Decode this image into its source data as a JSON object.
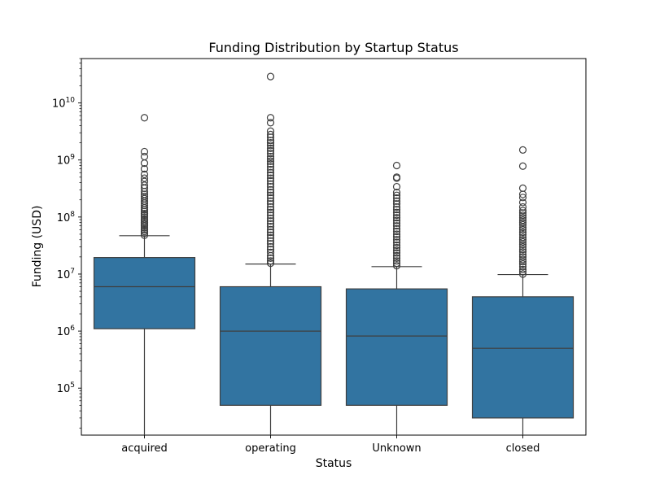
{
  "chart_data": {
    "type": "box",
    "title": "Funding Distribution by Startup Status",
    "xlabel": "Status",
    "ylabel": "Funding (USD)",
    "yscale": "log",
    "ylim": [
      15000,
      60000000000
    ],
    "ytick_base": "10",
    "ytick_exponents": [
      "5",
      "6",
      "7",
      "8",
      "9",
      "10"
    ],
    "box_color": "#3274a1",
    "line_color": "#3f3f3f",
    "categories": [
      "acquired",
      "operating",
      "Unknown",
      "closed"
    ],
    "boxes": [
      {
        "category": "acquired",
        "whisker_low": 15000,
        "q1": 1100000,
        "median": 6000000,
        "q3": 19500000,
        "whisker_high": 47000000,
        "outliers": [
          48000000,
          52000000,
          56000000,
          60000000,
          65000000,
          70000000,
          75000000,
          80000000,
          86000000,
          92000000,
          100000000,
          108000000,
          115000000,
          125000000,
          135000000,
          145000000,
          160000000,
          175000000,
          190000000,
          210000000,
          230000000,
          250000000,
          280000000,
          320000000,
          360000000,
          420000000,
          480000000,
          560000000,
          700000000,
          880000000,
          1150000000,
          1400000000,
          5500000000
        ]
      },
      {
        "category": "operating",
        "whisker_low": 15000,
        "q1": 50000,
        "median": 1000000,
        "q3": 6000000,
        "whisker_high": 15000000,
        "outliers": [
          15500000,
          17000000,
          19000000,
          21000000,
          24000000,
          27000000,
          30000000,
          34000000,
          38000000,
          43000000,
          48000000,
          54000000,
          60000000,
          68000000,
          76000000,
          85000000,
          95000000,
          107000000,
          120000000,
          135000000,
          150000000,
          170000000,
          190000000,
          215000000,
          240000000,
          270000000,
          300000000,
          340000000,
          380000000,
          430000000,
          480000000,
          540000000,
          600000000,
          680000000,
          760000000,
          850000000,
          950000000,
          1050000000,
          1150000000,
          1300000000,
          1450000000,
          1600000000,
          1800000000,
          2000000000,
          2200000000,
          2500000000,
          2800000000,
          3200000000,
          4500000000,
          5500000000,
          29000000000
        ]
      },
      {
        "category": "Unknown",
        "whisker_low": 15000,
        "q1": 50000,
        "median": 820000,
        "q3": 5500000,
        "whisker_high": 13500000,
        "outliers": [
          14000000,
          15500000,
          17000000,
          19000000,
          21000000,
          23500000,
          26000000,
          29000000,
          32000000,
          36000000,
          40000000,
          45000000,
          50000000,
          56000000,
          62000000,
          70000000,
          78000000,
          87000000,
          97000000,
          108000000,
          120000000,
          135000000,
          150000000,
          170000000,
          190000000,
          215000000,
          240000000,
          270000000,
          340000000,
          480000000,
          500000000,
          800000000
        ]
      },
      {
        "category": "closed",
        "whisker_low": 15000,
        "q1": 30000,
        "median": 500000,
        "q3": 4000000,
        "whisker_high": 9800000,
        "outliers": [
          10000000,
          11000000,
          12000000,
          13500000,
          15000000,
          16500000,
          18000000,
          20000000,
          22000000,
          24500000,
          27000000,
          30000000,
          33000000,
          36500000,
          40000000,
          44000000,
          49000000,
          54000000,
          60000000,
          66000000,
          73000000,
          80000000,
          88000000,
          97000000,
          107000000,
          118000000,
          130000000,
          150000000,
          180000000,
          220000000,
          250000000,
          320000000,
          780000000,
          1500000000
        ]
      }
    ]
  }
}
